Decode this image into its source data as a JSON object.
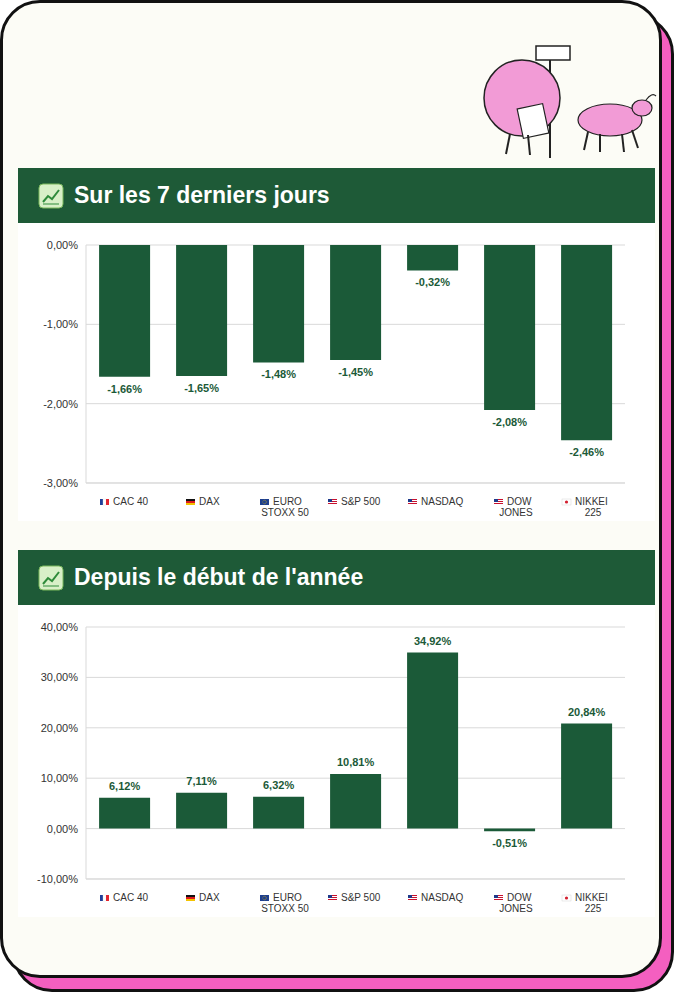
{
  "chart_data": [
    {
      "type": "bar",
      "title": "Sur les 7 derniers jours",
      "categories": [
        "CAC 40",
        "DAX",
        "EURO STOXX 50",
        "S&P 500",
        "NASDAQ",
        "DOW JONES",
        "NIKKEI 225"
      ],
      "values": [
        -1.66,
        -1.65,
        -1.48,
        -1.45,
        -0.32,
        -2.08,
        -2.46
      ],
      "value_labels": [
        "-1,66%",
        "-1,65%",
        "-1,48%",
        "-1,45%",
        "-0,32%",
        "-2,08%",
        "-2,46%"
      ],
      "color": "#1b5a38",
      "ylim": [
        -3,
        0
      ],
      "yticks": [
        {
          "value": -3,
          "label": "-3,00%"
        },
        {
          "value": -2,
          "label": "-2,00%"
        },
        {
          "value": -1,
          "label": "-1,00%"
        },
        {
          "value": 0,
          "label": "0,00%"
        }
      ],
      "grid": true,
      "data_labels": true
    },
    {
      "type": "bar",
      "title": "Depuis le début de l'année",
      "categories": [
        "CAC 40",
        "DAX",
        "EURO STOXX 50",
        "S&P 500",
        "NASDAQ",
        "DOW JONES",
        "NIKKEI 225"
      ],
      "values": [
        6.12,
        7.11,
        6.32,
        10.81,
        34.92,
        -0.51,
        20.84
      ],
      "value_labels": [
        "6,12%",
        "7,11%",
        "6,32%",
        "10,81%",
        "34,92%",
        "-0,51%",
        "20,84%"
      ],
      "color": "#1b5a38",
      "ylim": [
        -10,
        40
      ],
      "yticks": [
        {
          "value": -10,
          "label": "-10,00%"
        },
        {
          "value": 0,
          "label": "0,00%"
        },
        {
          "value": 10,
          "label": "10,00%"
        },
        {
          "value": 20,
          "label": "20,00%"
        },
        {
          "value": 30,
          "label": "30,00%"
        },
        {
          "value": 40,
          "label": "40,00%"
        }
      ],
      "grid": true,
      "data_labels": true
    }
  ]
}
